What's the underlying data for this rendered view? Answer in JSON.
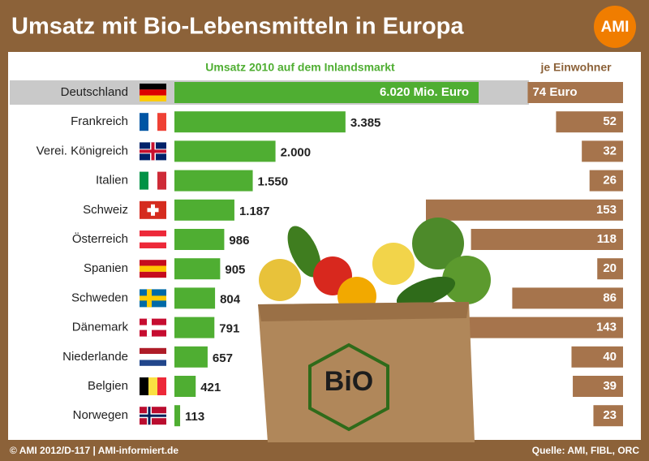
{
  "chart_data": {
    "type": "bar",
    "title": "Umsatz mit Bio-Lebensmitteln in Europa",
    "logo": "AMI",
    "footer_left": "© AMI 2012/D-117 | AMI-informiert.de",
    "footer_right": "Quelle: AMI, FIBL, ORC",
    "bag_label": "BiO",
    "categories": [
      "Deutschland",
      "Frankreich",
      "Verei. Königreich",
      "Italien",
      "Schweiz",
      "Österreich",
      "Spanien",
      "Schweden",
      "Dänemark",
      "Niederlande",
      "Belgien",
      "Norwegen"
    ],
    "series": [
      {
        "name": "Umsatz 2010 auf dem Inlandsmarkt",
        "color": "#4fae32",
        "values": [
          6020,
          3385,
          2000,
          1550,
          1187,
          986,
          905,
          804,
          791,
          657,
          421,
          113
        ],
        "value_labels": [
          "6.020 Mio. Euro",
          "3.385",
          "2.000",
          "1.550",
          "1.187",
          "986",
          "905",
          "804",
          "791",
          "657",
          "421",
          "113"
        ]
      },
      {
        "name": "je Einwohner",
        "color": "#a6744c",
        "values": [
          74,
          52,
          32,
          26,
          153,
          118,
          20,
          86,
          143,
          40,
          39,
          23
        ],
        "value_labels": [
          "74 Euro",
          "52",
          "32",
          "26",
          "153",
          "118",
          "20",
          "86",
          "143",
          "40",
          "39",
          "23"
        ]
      }
    ]
  }
}
